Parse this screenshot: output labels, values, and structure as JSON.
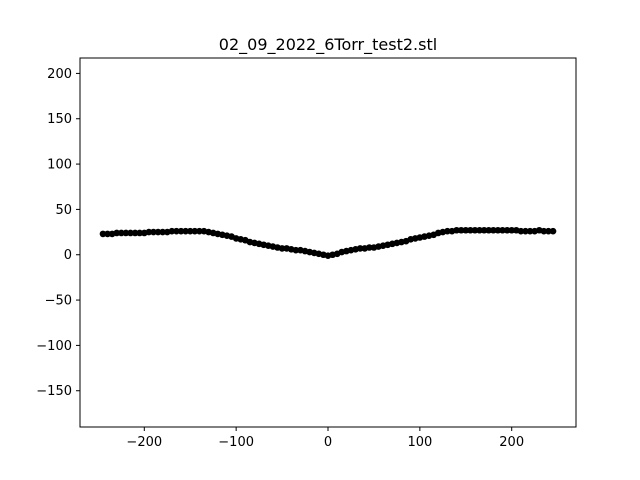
{
  "chart_data": {
    "type": "scatter",
    "title": "02_09_2022_6Torr_test2.stl",
    "xlabel": "",
    "ylabel": "",
    "xlim": [
      -270,
      270
    ],
    "ylim": [
      -190,
      217
    ],
    "xticks": [
      -200,
      -100,
      0,
      100,
      200
    ],
    "xtick_labels": [
      "−200",
      "−100",
      "0",
      "100",
      "200"
    ],
    "yticks": [
      -150,
      -100,
      -50,
      0,
      50,
      100,
      150,
      200
    ],
    "ytick_labels": [
      "−150",
      "−100",
      "−50",
      "0",
      "50",
      "100",
      "150",
      "200"
    ],
    "grid": false,
    "marker_color": "#000000",
    "series": [
      {
        "x": [
          -245,
          -240,
          -235,
          -230,
          -225,
          -220,
          -215,
          -210,
          -205,
          -200,
          -195,
          -190,
          -185,
          -180,
          -175,
          -170,
          -165,
          -160,
          -155,
          -150,
          -145,
          -140,
          -135,
          -130,
          -125,
          -120,
          -115,
          -110,
          -105,
          -100,
          -95,
          -90,
          -85,
          -80,
          -75,
          -70,
          -65,
          -60,
          -55,
          -50,
          -45,
          -40,
          -35,
          -30,
          -25,
          -20,
          -15,
          -10,
          -5,
          0,
          5,
          10,
          15,
          20,
          25,
          30,
          35,
          40,
          45,
          50,
          55,
          60,
          65,
          70,
          75,
          80,
          85,
          90,
          95,
          100,
          105,
          110,
          115,
          120,
          125,
          130,
          135,
          140,
          145,
          150,
          155,
          160,
          165,
          170,
          175,
          180,
          185,
          190,
          195,
          200,
          205,
          210,
          215,
          220,
          225,
          230,
          235,
          240,
          245
        ],
        "y": [
          23,
          23,
          23,
          24,
          24,
          24,
          24,
          24,
          24,
          24,
          25,
          25,
          25,
          25,
          25,
          26,
          26,
          26,
          26,
          26,
          26,
          26,
          26,
          25,
          24,
          23,
          22,
          21,
          20,
          18,
          17,
          16,
          14,
          13,
          12,
          11,
          10,
          9,
          8,
          7,
          7,
          6,
          5,
          5,
          4,
          3,
          2,
          1,
          0,
          -1,
          0,
          1,
          3,
          4,
          5,
          6,
          7,
          7,
          8,
          8,
          9,
          10,
          11,
          12,
          13,
          14,
          15,
          17,
          18,
          19,
          20,
          21,
          22,
          24,
          25,
          26,
          26,
          27,
          27,
          27,
          27,
          27,
          27,
          27,
          27,
          27,
          27,
          27,
          27,
          27,
          27,
          26,
          26,
          26,
          26,
          27,
          26,
          26,
          26
        ]
      }
    ]
  }
}
